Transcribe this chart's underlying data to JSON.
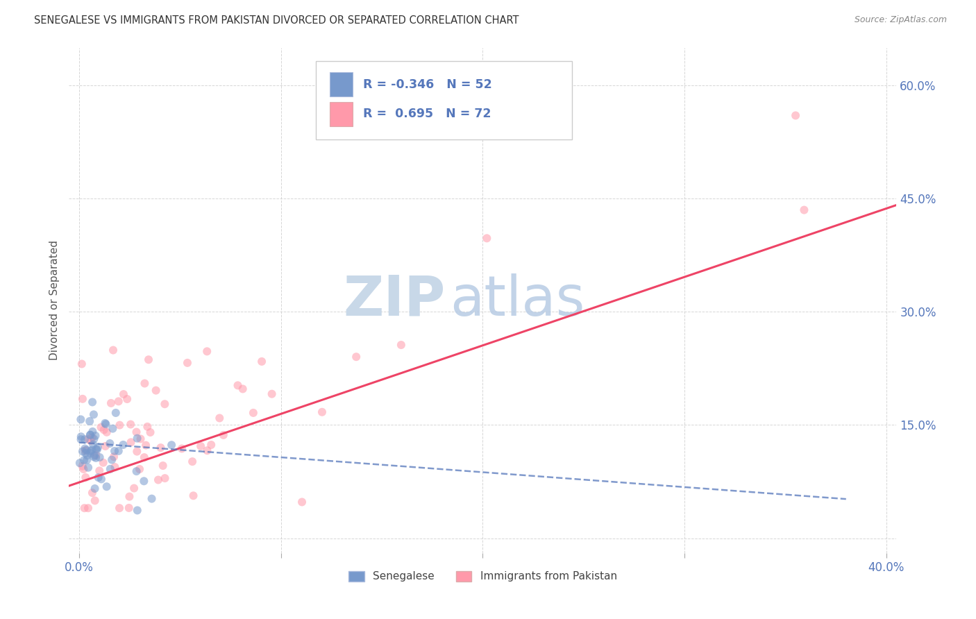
{
  "title": "SENEGALESE VS IMMIGRANTS FROM PAKISTAN DIVORCED OR SEPARATED CORRELATION CHART",
  "source": "Source: ZipAtlas.com",
  "ylabel_label": "Divorced or Separated",
  "xlim": [
    -0.005,
    0.405
  ],
  "ylim": [
    -0.02,
    0.65
  ],
  "xtick_vals": [
    0.0,
    0.1,
    0.2,
    0.3,
    0.4
  ],
  "xtick_labels": [
    "0.0%",
    "",
    "",
    "",
    "40.0%"
  ],
  "ytick_vals": [
    0.0,
    0.15,
    0.3,
    0.45,
    0.6
  ],
  "ytick_right_labels": [
    "",
    "15.0%",
    "30.0%",
    "45.0%",
    "60.0%"
  ],
  "grid_color": "#cccccc",
  "background_color": "#ffffff",
  "watermark_zip": "ZIP",
  "watermark_atlas": "atlas",
  "watermark_color": "#c8d8e8",
  "color_blue": "#7799CC",
  "color_pink": "#FF99AA",
  "color_blue_line": "#5577BB",
  "color_pink_line": "#EE4466",
  "legend_label1": "Senegalese",
  "legend_label2": "Immigrants from Pakistan",
  "tick_color": "#5577BB",
  "title_color": "#333333",
  "ylabel_color": "#555555"
}
